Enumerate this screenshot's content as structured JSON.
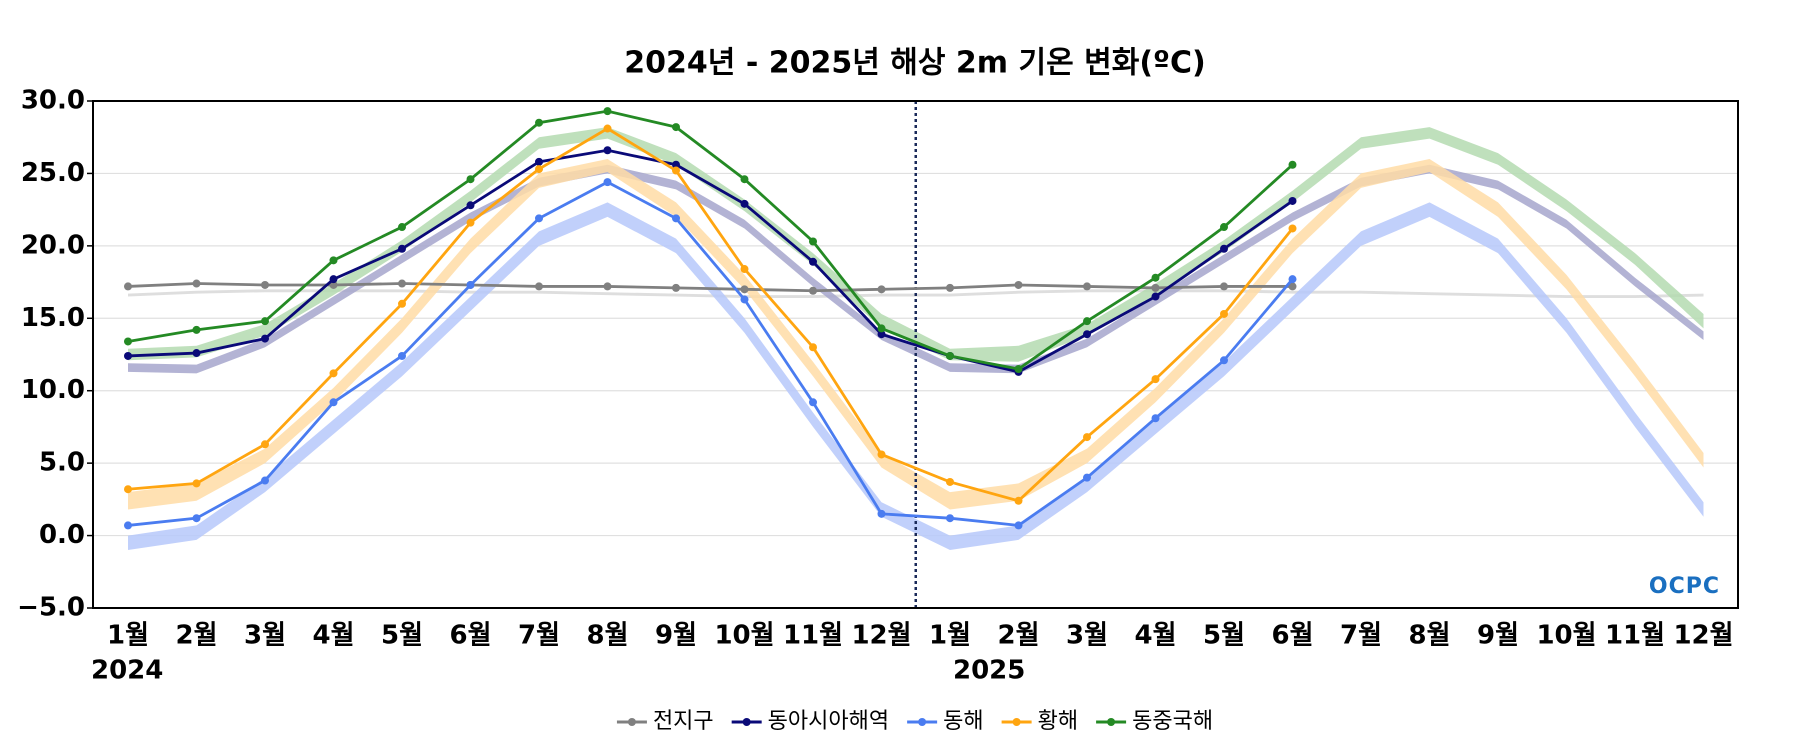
{
  "chart_data": {
    "type": "line",
    "title": "2024년 - 2025년 해상 2m 기온 변화(ºC)",
    "categories": [
      "1월",
      "2월",
      "3월",
      "4월",
      "5월",
      "6월",
      "7월",
      "8월",
      "9월",
      "10월",
      "11월",
      "12월",
      "1월",
      "2월",
      "3월",
      "4월",
      "5월",
      "6월",
      "7월",
      "8월",
      "9월",
      "10월",
      "11월",
      "12월"
    ],
    "year_labels": [
      "2024",
      "2025"
    ],
    "logo": "OCPC",
    "ylim": [
      -5,
      30
    ],
    "yticks": [
      {
        "value": -5,
        "label": "−5.0"
      },
      {
        "value": 0,
        "label": "0.0"
      },
      {
        "value": 5,
        "label": "5.0"
      },
      {
        "value": 10,
        "label": "10.0"
      },
      {
        "value": 15,
        "label": "15.0"
      },
      {
        "value": 20,
        "label": "20.0"
      },
      {
        "value": 25,
        "label": "25.0"
      },
      {
        "value": 30,
        "label": "30.0"
      }
    ],
    "grid": true,
    "legend": "bottom",
    "series": [
      {
        "name": "전지구",
        "color": "#808080",
        "band_color": "#d8d8d8",
        "values": [
          17.2,
          17.4,
          17.3,
          17.3,
          17.4,
          17.3,
          17.2,
          17.2,
          17.1,
          17.0,
          16.9,
          17.0,
          17.1,
          17.3,
          17.2,
          17.1,
          17.2,
          17.2,
          null,
          null,
          null,
          null,
          null,
          null
        ],
        "band_lower": [
          16.5,
          16.7,
          16.8,
          16.8,
          16.8,
          16.7,
          16.7,
          16.6,
          16.5,
          16.4,
          16.4,
          16.5,
          16.5,
          16.7,
          16.8,
          16.8,
          16.8,
          16.7,
          16.7,
          16.6,
          16.5,
          16.4,
          16.4,
          16.5
        ],
        "band_upper": [
          16.7,
          16.9,
          17.0,
          17.0,
          17.0,
          16.9,
          16.9,
          16.8,
          16.7,
          16.6,
          16.6,
          16.7,
          16.7,
          16.9,
          17.0,
          17.0,
          17.0,
          16.9,
          16.9,
          16.8,
          16.7,
          16.6,
          16.6,
          16.7
        ]
      },
      {
        "name": "동아시아해역",
        "color": "#0a0a78",
        "band_color": "#a6a6cc",
        "values": [
          12.4,
          12.6,
          13.6,
          17.7,
          19.8,
          22.8,
          25.8,
          26.6,
          25.6,
          22.9,
          18.9,
          13.9,
          12.4,
          11.3,
          13.9,
          16.5,
          19.8,
          23.1,
          null,
          null,
          null,
          null,
          null,
          null
        ],
        "band_lower": [
          11.3,
          11.2,
          13.0,
          15.9,
          18.8,
          21.7,
          24.1,
          25.0,
          23.9,
          21.2,
          17.2,
          13.5,
          11.3,
          11.2,
          13.0,
          15.9,
          18.8,
          21.7,
          24.1,
          25.0,
          23.9,
          21.2,
          17.2,
          13.5
        ],
        "band_upper": [
          11.9,
          11.8,
          13.6,
          16.5,
          19.4,
          22.3,
          24.7,
          25.6,
          24.5,
          21.8,
          17.8,
          14.1,
          11.9,
          11.8,
          13.6,
          16.5,
          19.4,
          22.3,
          24.7,
          25.6,
          24.5,
          21.8,
          17.8,
          14.1
        ]
      },
      {
        "name": "동해",
        "color": "#4a7cf0",
        "band_color": "#b6c8fa",
        "values": [
          0.7,
          1.2,
          3.8,
          9.2,
          12.4,
          17.3,
          21.9,
          24.4,
          21.9,
          16.3,
          9.2,
          1.5,
          1.2,
          0.7,
          4.0,
          8.1,
          12.1,
          17.7,
          null,
          null,
          null,
          null,
          null,
          null
        ],
        "band_lower": [
          -1.0,
          -0.3,
          3.0,
          7.0,
          11.0,
          15.5,
          20.0,
          22.0,
          19.5,
          14.0,
          7.5,
          1.3,
          -1.0,
          -0.3,
          3.0,
          7.0,
          11.0,
          15.5,
          20.0,
          22.0,
          19.5,
          14.0,
          7.5,
          1.3
        ],
        "band_upper": [
          0.0,
          0.7,
          4.0,
          8.0,
          12.0,
          16.5,
          21.0,
          23.0,
          20.5,
          15.0,
          8.5,
          2.3,
          0.0,
          0.7,
          4.0,
          8.0,
          12.0,
          16.5,
          21.0,
          23.0,
          20.5,
          15.0,
          8.5,
          2.3
        ]
      },
      {
        "name": "황해",
        "color": "#ffa510",
        "band_color": "#ffdca6",
        "values": [
          3.2,
          3.6,
          6.3,
          11.2,
          16.0,
          21.6,
          25.3,
          28.1,
          25.2,
          18.4,
          13.0,
          5.6,
          3.7,
          2.4,
          6.8,
          10.8,
          15.3,
          21.2,
          null,
          null,
          null,
          null,
          null,
          null
        ],
        "band_lower": [
          1.8,
          2.4,
          5.0,
          9.2,
          14.0,
          19.5,
          24.0,
          25.1,
          22.0,
          17.0,
          11.0,
          4.7,
          1.8,
          2.4,
          5.0,
          9.2,
          14.0,
          19.5,
          24.0,
          25.1,
          22.0,
          17.0,
          11.0,
          4.7
        ],
        "band_upper": [
          3.0,
          3.6,
          6.0,
          10.2,
          15.0,
          20.5,
          25.0,
          26.0,
          23.0,
          18.0,
          12.0,
          5.7,
          3.0,
          3.6,
          6.0,
          10.2,
          15.0,
          20.5,
          25.0,
          26.0,
          23.0,
          18.0,
          12.0,
          5.7
        ]
      },
      {
        "name": "동중국해",
        "color": "#248a24",
        "band_color": "#b4dab0",
        "values": [
          13.4,
          14.2,
          14.8,
          19.0,
          21.3,
          24.6,
          28.5,
          29.3,
          28.2,
          24.6,
          20.3,
          14.3,
          12.4,
          11.5,
          14.8,
          17.8,
          21.3,
          25.6,
          null,
          null,
          null,
          null,
          null,
          null
        ],
        "band_lower": [
          12.1,
          12.3,
          13.8,
          16.6,
          19.6,
          23.0,
          26.7,
          27.4,
          25.6,
          22.4,
          18.7,
          14.3,
          12.1,
          12.0,
          13.8,
          16.6,
          19.6,
          23.0,
          26.7,
          27.4,
          25.6,
          22.4,
          18.7,
          14.3
        ],
        "band_upper": [
          12.9,
          13.1,
          14.6,
          17.4,
          20.4,
          23.8,
          27.5,
          28.2,
          26.4,
          23.2,
          19.5,
          15.3,
          12.9,
          13.1,
          14.6,
          17.4,
          20.4,
          23.8,
          27.5,
          28.2,
          26.4,
          23.2,
          19.5,
          15.3
        ]
      }
    ]
  }
}
